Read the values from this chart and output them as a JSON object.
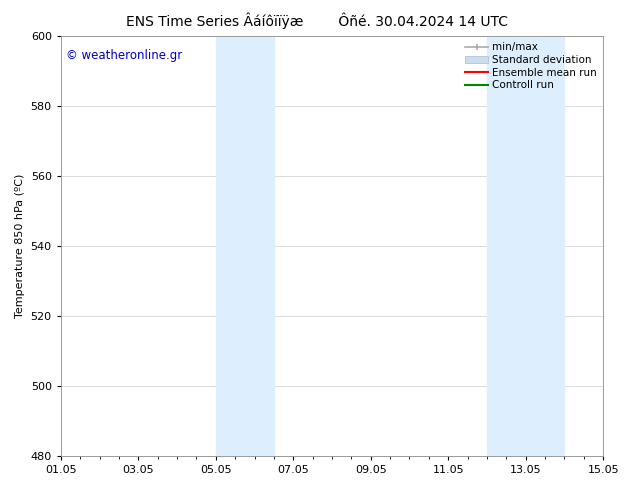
{
  "title": "ENS Time Series Âáíôïïÿæ        Ôñé. 30.04.2024 14 UTC",
  "ylabel": "Temperature 850 hPa (ºC)",
  "watermark": "© weatheronline.gr",
  "watermark_color": "#0000cc",
  "ylim": [
    480,
    600
  ],
  "yticks": [
    480,
    500,
    520,
    540,
    560,
    580,
    600
  ],
  "xtick_labels": [
    "01.05",
    "03.05",
    "05.05",
    "07.05",
    "09.05",
    "11.05",
    "13.05",
    "15.05"
  ],
  "xtick_positions": [
    0,
    2,
    4,
    6,
    8,
    10,
    12,
    14
  ],
  "x_total_days": 14,
  "shaded_bands": [
    {
      "x_start": 4.0,
      "x_end": 5.5
    },
    {
      "x_start": 11.0,
      "x_end": 13.0
    }
  ],
  "shaded_color": "#ddeeff",
  "grid_color": "#cccccc",
  "legend_labels": [
    "min/max",
    "Standard deviation",
    "Ensemble mean run",
    "Controll run"
  ],
  "legend_colors": [
    "#aaaaaa",
    "#ccddf0",
    "#ff0000",
    "#008800"
  ],
  "bg_color": "#ffffff",
  "title_fontsize": 10,
  "tick_fontsize": 8,
  "ylabel_fontsize": 8,
  "legend_fontsize": 7.5
}
